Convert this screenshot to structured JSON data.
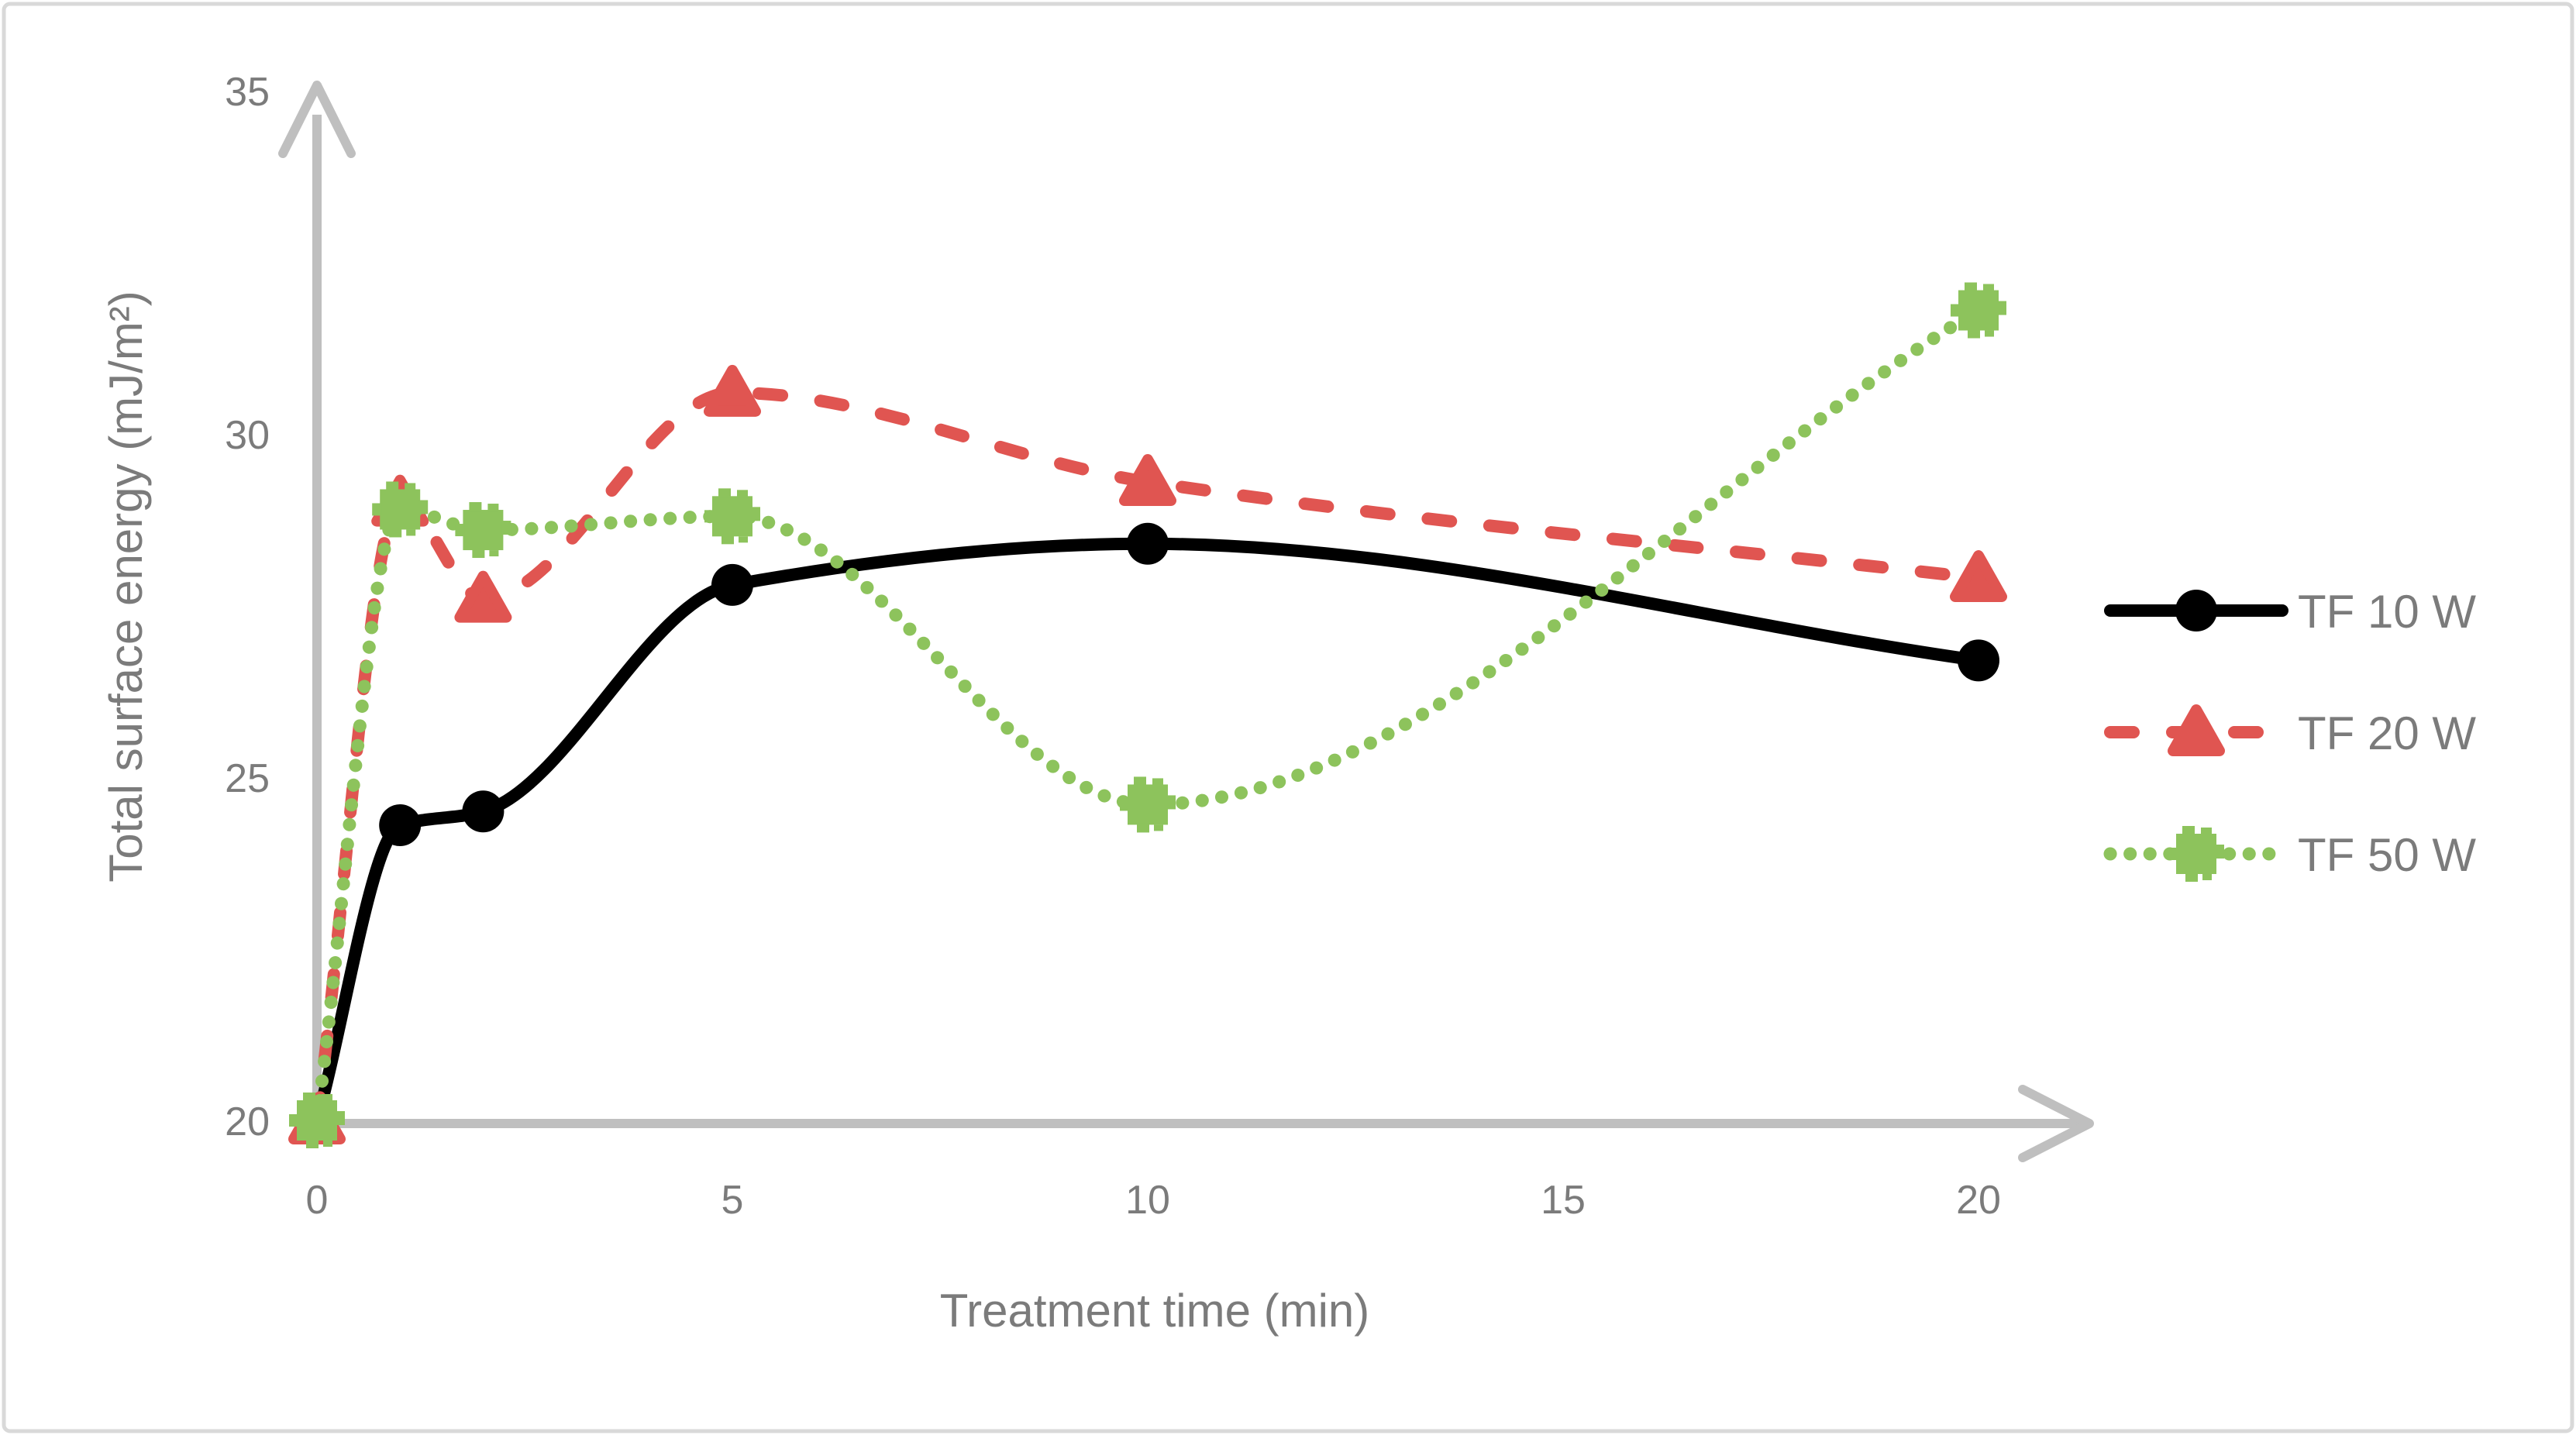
{
  "figure": {
    "background": "#ffffff",
    "border_color": "#d9d9d9"
  },
  "axes": {
    "line_color": "#bfbfbf",
    "text_color": "#7b7b7b"
  },
  "chart_data": {
    "type": "line",
    "title": "",
    "xlabel": "Treatment time (min)",
    "ylabel": "Total surface energy (mJ/m²)",
    "x": [
      0,
      1,
      2,
      5,
      10,
      20
    ],
    "x_ticks": [
      "0",
      "5",
      "10",
      "15",
      "20"
    ],
    "y_ticks_top_to_bottom": [
      "35",
      "30",
      "25",
      "20"
    ],
    "xlim": [
      0,
      21.5
    ],
    "ylim": [
      20,
      35
    ],
    "grid": false,
    "legend_position": "right-middle",
    "series": [
      {
        "name": "TF 10 W",
        "color": "#000000",
        "line_style": "solid",
        "marker": "circle",
        "values": [
          20,
          24.3,
          24.5,
          27.8,
          28.4,
          26.7
        ]
      },
      {
        "name": "TF 20 W",
        "color": "#e05551",
        "line_style": "dashed",
        "marker": "triangle",
        "values": [
          20,
          29.0,
          27.6,
          30.6,
          29.3,
          27.9
        ]
      },
      {
        "name": "TF 50 W",
        "color": "#8dc35c",
        "line_style": "dotted",
        "marker": "square",
        "values": [
          20,
          28.9,
          28.6,
          28.8,
          24.6,
          31.8
        ]
      }
    ]
  }
}
